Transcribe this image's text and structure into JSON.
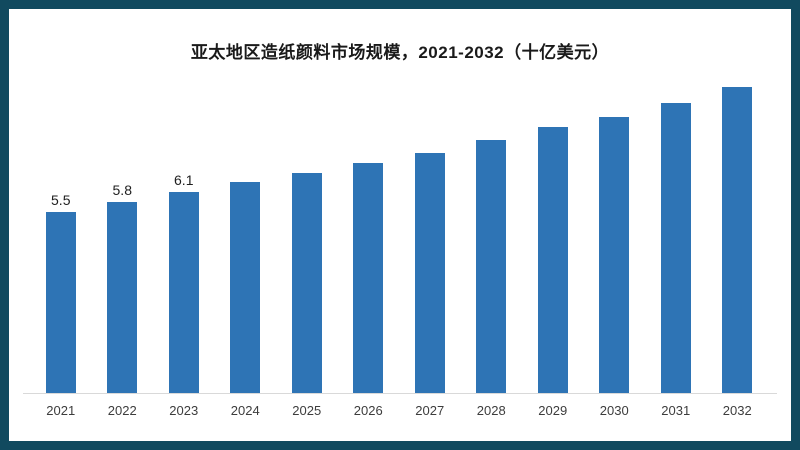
{
  "frame": {
    "border_color": "#114a5f",
    "background_color": "#ffffff"
  },
  "chart_data": {
    "type": "bar",
    "title": "亚太地区造纸颜料市场规模，2021-2032（十亿美元）",
    "categories": [
      "2021",
      "2022",
      "2023",
      "2024",
      "2025",
      "2026",
      "2027",
      "2028",
      "2029",
      "2030",
      "2031",
      "2032"
    ],
    "values": [
      5.5,
      5.8,
      6.1,
      6.4,
      6.7,
      7.0,
      7.3,
      7.7,
      8.1,
      8.4,
      8.8,
      9.3
    ],
    "data_labels": [
      "5.5",
      "5.8",
      "6.1",
      null,
      null,
      null,
      null,
      null,
      null,
      null,
      null,
      null
    ],
    "xlabel": "",
    "ylabel": "",
    "ylim": [
      0,
      9.3
    ],
    "grid": false,
    "legend": false,
    "bar_color": "#2e74b5",
    "axis_line_color": "#d9d9d9",
    "value_label_color": "#1f1f1f",
    "tick_label_color": "#3d3d3d",
    "title_color": "#1a1a1a"
  }
}
